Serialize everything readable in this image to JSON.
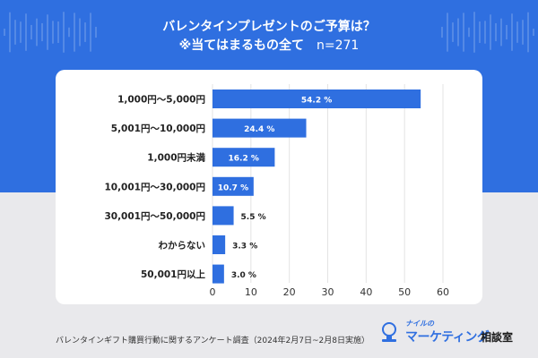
{
  "title_line1": "バレンタインプレゼントのご予算は？",
  "title_line2": "※当てはまるもの全て",
  "sample_size": "n=271",
  "footer_note": "バレンタインギフト購買行動に関するアンケート調査（2024年2月7日~2月8日実施）",
  "logo": {
    "small": "ナイルの",
    "main": "マーケティング",
    "sub": "相談室"
  },
  "colors": {
    "bar": "#2f6fe0",
    "header_bg": "#2f6fe0",
    "page_bg": "#e9e9ec"
  },
  "chart_data": {
    "type": "bar",
    "orientation": "horizontal",
    "title": "バレンタインプレゼントのご予算は？",
    "categories": [
      "1,000円～5,000円",
      "5,001円～10,000円",
      "1,000円未満",
      "10,001円～30,000円",
      "30,001円～50,000円",
      "わからない",
      "50,001円以上"
    ],
    "values": [
      54.2,
      24.4,
      16.2,
      10.7,
      5.5,
      3.3,
      3.0
    ],
    "value_labels": [
      "54.2 %",
      "24.4 %",
      "16.2 %",
      "10.7 %",
      "5.5 %",
      "3.3 %",
      "3.0 %"
    ],
    "xlim": [
      0,
      60
    ],
    "xticks": [
      0,
      10,
      20,
      30,
      40,
      50,
      60
    ],
    "grid": true,
    "xlabel": "",
    "ylabel": ""
  }
}
